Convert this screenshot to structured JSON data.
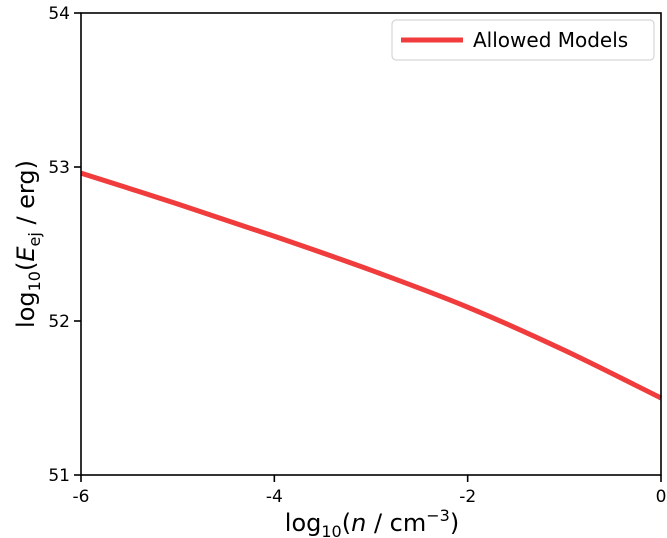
{
  "chart_data": {
    "type": "line",
    "xlabel": {
      "base": "log",
      "sub": "10",
      "pre": "(",
      "var": "n",
      "mid": " / cm",
      "sup": "−3",
      "post": ")"
    },
    "ylabel": {
      "base": "log",
      "sub": "10",
      "pre": "(",
      "var": "E",
      "varsub": "ej",
      "post": " / erg)"
    },
    "xlim": [
      -6,
      0
    ],
    "ylim": [
      51,
      54
    ],
    "xticks": [
      -6,
      -4,
      -2,
      0
    ],
    "xtick_labels": [
      "-6",
      "-4",
      "-2",
      "0"
    ],
    "yticks": [
      51,
      52,
      53,
      54
    ],
    "ytick_labels": [
      "51",
      "52",
      "53",
      "54"
    ],
    "grid": false,
    "legend_position": "top-right",
    "series": [
      {
        "name": "Allowed Models",
        "color": "#f03c3c",
        "x": [
          -6,
          -5,
          -4,
          -3,
          -2,
          -1,
          0
        ],
        "y": [
          52.96,
          52.76,
          52.55,
          52.33,
          52.09,
          51.81,
          51.5
        ]
      }
    ]
  }
}
